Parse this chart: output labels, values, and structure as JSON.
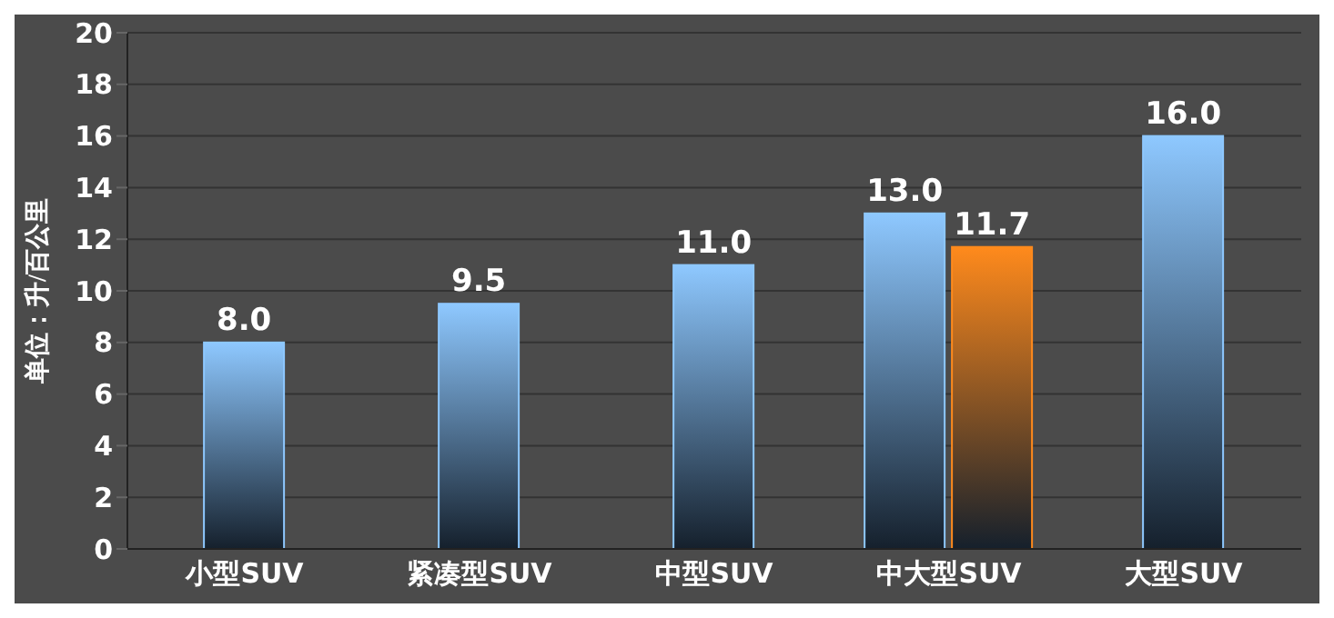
{
  "chart_data": {
    "type": "bar",
    "ylabel": "单位：升/百公里",
    "categories": [
      "小型SUV",
      "紧凑型SUV",
      "中型SUV",
      "中大型SUV",
      "大型SUV"
    ],
    "series": [
      {
        "color": "#8ec8ff",
        "values": [
          8.0,
          9.5,
          11.0,
          13.0,
          16.0
        ],
        "value_labels": [
          "8.0",
          "9.5",
          "11.0",
          "13.0",
          "16.0"
        ]
      },
      {
        "color": "#ff8a1c",
        "values": [
          null,
          null,
          null,
          11.7,
          null
        ],
        "value_labels": [
          null,
          null,
          null,
          "11.7",
          null
        ]
      }
    ],
    "ylim": [
      0,
      20
    ],
    "yticks": [
      0,
      2,
      4,
      6,
      8,
      10,
      12,
      14,
      16,
      18,
      20
    ],
    "grid": "y",
    "legend": false
  }
}
